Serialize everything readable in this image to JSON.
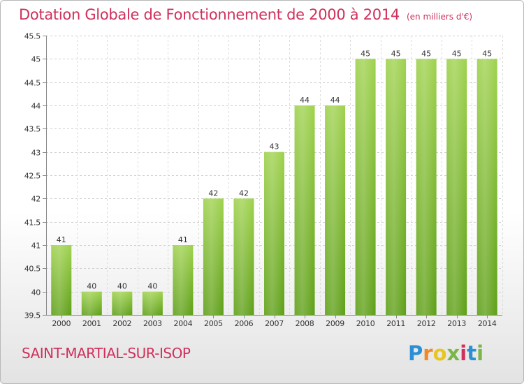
{
  "chart_data": {
    "type": "bar",
    "title": "Dotation Globale de Fonctionnement de 2000 à 2014",
    "subtitle": "(en milliers d'€)",
    "categories": [
      "2000",
      "2001",
      "2002",
      "2003",
      "2004",
      "2005",
      "2006",
      "2007",
      "2008",
      "2009",
      "2010",
      "2011",
      "2012",
      "2013",
      "2014"
    ],
    "values": [
      41,
      40,
      40,
      40,
      41,
      42,
      42,
      43,
      44,
      44,
      45,
      45,
      45,
      45,
      45
    ],
    "ylim": [
      39.5,
      45.5
    ],
    "yticks": [
      39.5,
      40,
      40.5,
      41,
      41.5,
      42,
      42.5,
      43,
      43.5,
      44,
      44.5,
      45,
      45.5
    ],
    "ytick_labels": [
      "39.5",
      "40",
      "40.5",
      "41",
      "41.5",
      "42",
      "42.5",
      "43",
      "43.5",
      "44",
      "44.5",
      "45",
      "45.5"
    ],
    "grid": true,
    "bar_color": "#8dc63f"
  },
  "footer": {
    "commune": "SAINT-MARTIAL-SUR-ISOP",
    "logo": [
      {
        "ch": "P",
        "color": "#2a8fd4"
      },
      {
        "ch": "r",
        "color": "#f08a24"
      },
      {
        "ch": "o",
        "color": "#e8c520"
      },
      {
        "ch": "x",
        "color": "#7ab648"
      },
      {
        "ch": "i",
        "color": "#d0305c"
      },
      {
        "ch": "t",
        "color": "#2a8fd4"
      },
      {
        "ch": "i",
        "color": "#7ab648"
      }
    ]
  }
}
